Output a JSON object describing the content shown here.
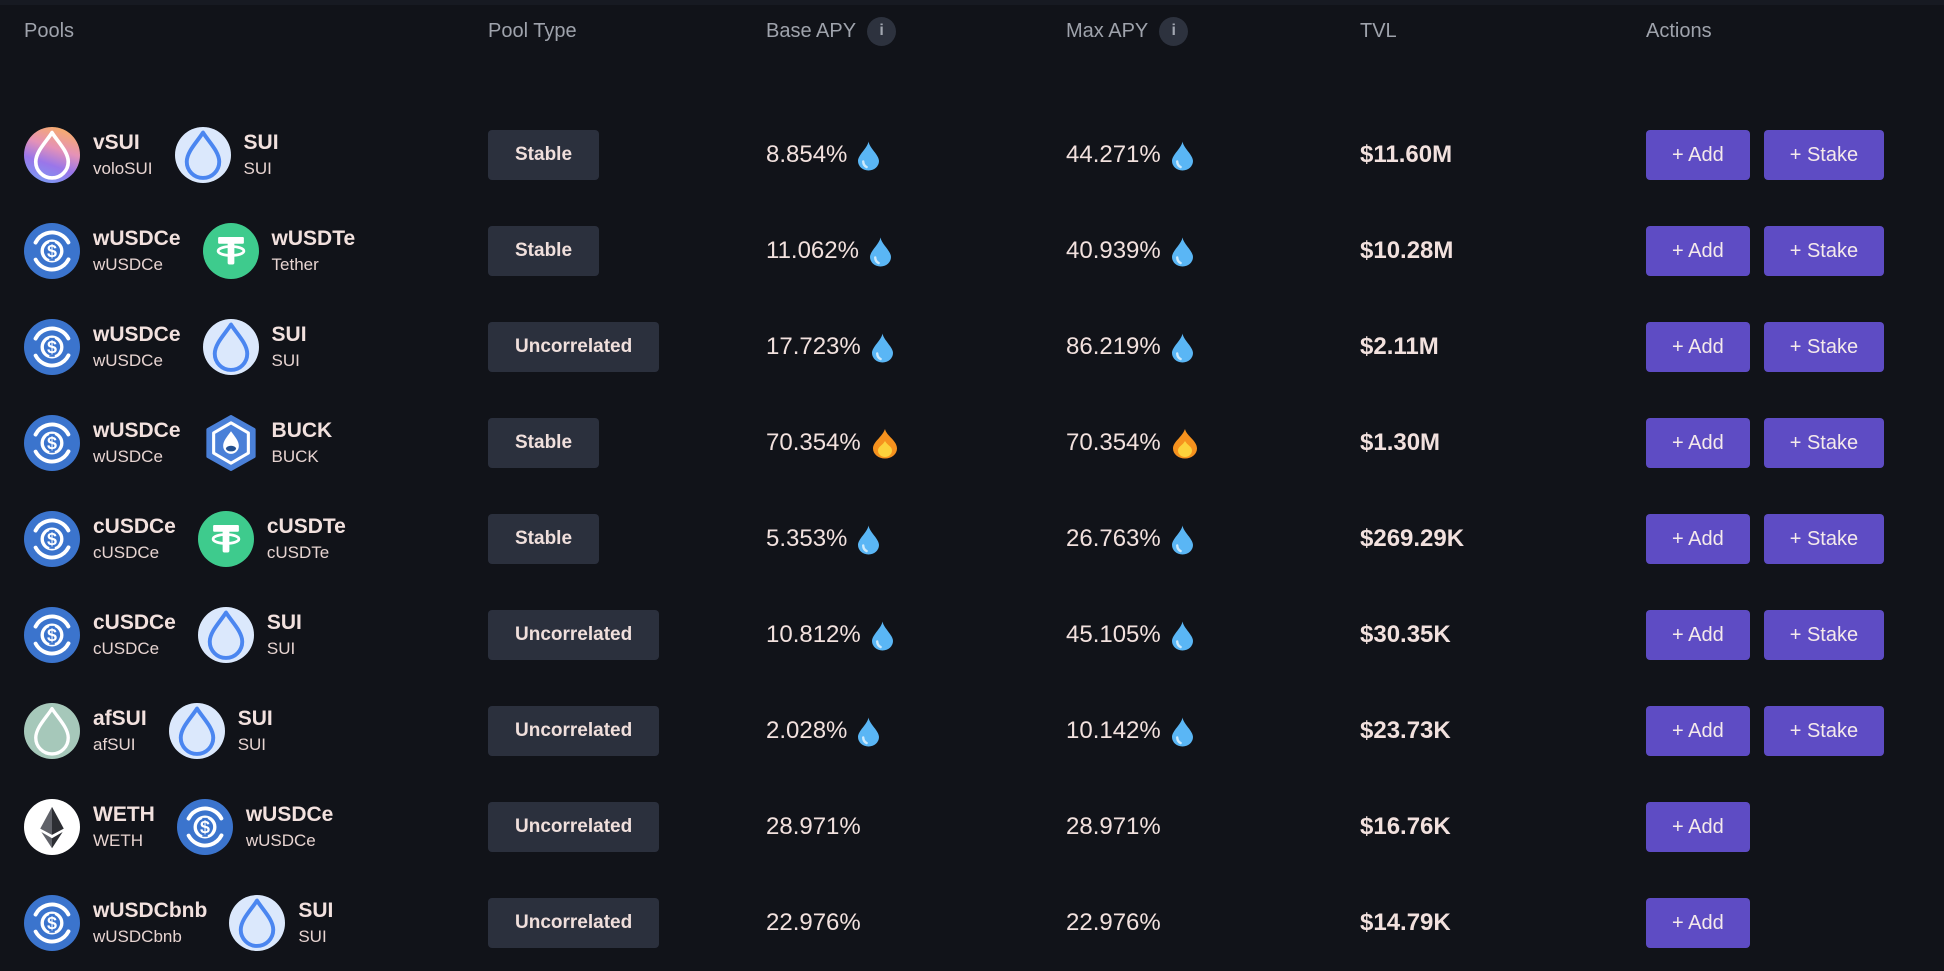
{
  "headers": {
    "pools": "Pools",
    "pool_type": "Pool Type",
    "base_apy": "Base APY",
    "max_apy": "Max APY",
    "tvl": "TVL",
    "actions": "Actions"
  },
  "info_glyph": "i",
  "buttons": {
    "add": "+ Add",
    "stake": "+ Stake"
  },
  "flag_glyphs": {
    "droplet": "💧",
    "fire": "🔥"
  },
  "colors": {
    "background": "#111319",
    "text_primary": "#f2e1de",
    "text_secondary": "#e7d4d1",
    "header_text": "#9fa3ac",
    "badge_background": "#2b303d",
    "button_purple": "#5e4cc4",
    "sui_blue": "#4b86f0",
    "usdc_blue": "#3b74cd",
    "tether_green": "#3ecb8d",
    "buck_blue": "#4a80d8",
    "afsui_sage": "#a6c8ba"
  },
  "rows": [
    {
      "token_a": {
        "symbol": "vSUI",
        "name": "voloSUI",
        "icon": "vsui"
      },
      "token_b": {
        "symbol": "SUI",
        "name": "SUI",
        "icon": "sui"
      },
      "pool_type": "Stable",
      "base_apy": "8.854%",
      "max_apy": "44.271%",
      "flag": "droplet",
      "tvl": "$11.60M",
      "actions": [
        "add",
        "stake"
      ]
    },
    {
      "token_a": {
        "symbol": "wUSDCe",
        "name": "wUSDCe",
        "icon": "usdc"
      },
      "token_b": {
        "symbol": "wUSDTe",
        "name": "Tether",
        "icon": "usdt"
      },
      "pool_type": "Stable",
      "base_apy": "11.062%",
      "max_apy": "40.939%",
      "flag": "droplet",
      "tvl": "$10.28M",
      "actions": [
        "add",
        "stake"
      ]
    },
    {
      "token_a": {
        "symbol": "wUSDCe",
        "name": "wUSDCe",
        "icon": "usdc"
      },
      "token_b": {
        "symbol": "SUI",
        "name": "SUI",
        "icon": "sui"
      },
      "pool_type": "Uncorrelated",
      "base_apy": "17.723%",
      "max_apy": "86.219%",
      "flag": "droplet",
      "tvl": "$2.11M",
      "actions": [
        "add",
        "stake"
      ]
    },
    {
      "token_a": {
        "symbol": "wUSDCe",
        "name": "wUSDCe",
        "icon": "usdc"
      },
      "token_b": {
        "symbol": "BUCK",
        "name": "BUCK",
        "icon": "buck"
      },
      "pool_type": "Stable",
      "base_apy": "70.354%",
      "max_apy": "70.354%",
      "flag": "fire",
      "tvl": "$1.30M",
      "actions": [
        "add",
        "stake"
      ]
    },
    {
      "token_a": {
        "symbol": "cUSDCe",
        "name": "cUSDCe",
        "icon": "usdc"
      },
      "token_b": {
        "symbol": "cUSDTe",
        "name": "cUSDTe",
        "icon": "usdt"
      },
      "pool_type": "Stable",
      "base_apy": "5.353%",
      "max_apy": "26.763%",
      "flag": "droplet",
      "tvl": "$269.29K",
      "actions": [
        "add",
        "stake"
      ]
    },
    {
      "token_a": {
        "symbol": "cUSDCe",
        "name": "cUSDCe",
        "icon": "usdc"
      },
      "token_b": {
        "symbol": "SUI",
        "name": "SUI",
        "icon": "sui"
      },
      "pool_type": "Uncorrelated",
      "base_apy": "10.812%",
      "max_apy": "45.105%",
      "flag": "droplet",
      "tvl": "$30.35K",
      "actions": [
        "add",
        "stake"
      ]
    },
    {
      "token_a": {
        "symbol": "afSUI",
        "name": "afSUI",
        "icon": "afsui"
      },
      "token_b": {
        "symbol": "SUI",
        "name": "SUI",
        "icon": "sui"
      },
      "pool_type": "Uncorrelated",
      "base_apy": "2.028%",
      "max_apy": "10.142%",
      "flag": "droplet",
      "tvl": "$23.73K",
      "actions": [
        "add",
        "stake"
      ]
    },
    {
      "token_a": {
        "symbol": "WETH",
        "name": "WETH",
        "icon": "weth"
      },
      "token_b": {
        "symbol": "wUSDCe",
        "name": "wUSDCe",
        "icon": "usdc"
      },
      "pool_type": "Uncorrelated",
      "base_apy": "28.971%",
      "max_apy": "28.971%",
      "flag": null,
      "tvl": "$16.76K",
      "actions": [
        "add"
      ]
    },
    {
      "token_a": {
        "symbol": "wUSDCbnb",
        "name": "wUSDCbnb",
        "icon": "usdc"
      },
      "token_b": {
        "symbol": "SUI",
        "name": "SUI",
        "icon": "sui"
      },
      "pool_type": "Uncorrelated",
      "base_apy": "22.976%",
      "max_apy": "22.976%",
      "flag": null,
      "tvl": "$14.79K",
      "actions": [
        "add"
      ]
    }
  ]
}
